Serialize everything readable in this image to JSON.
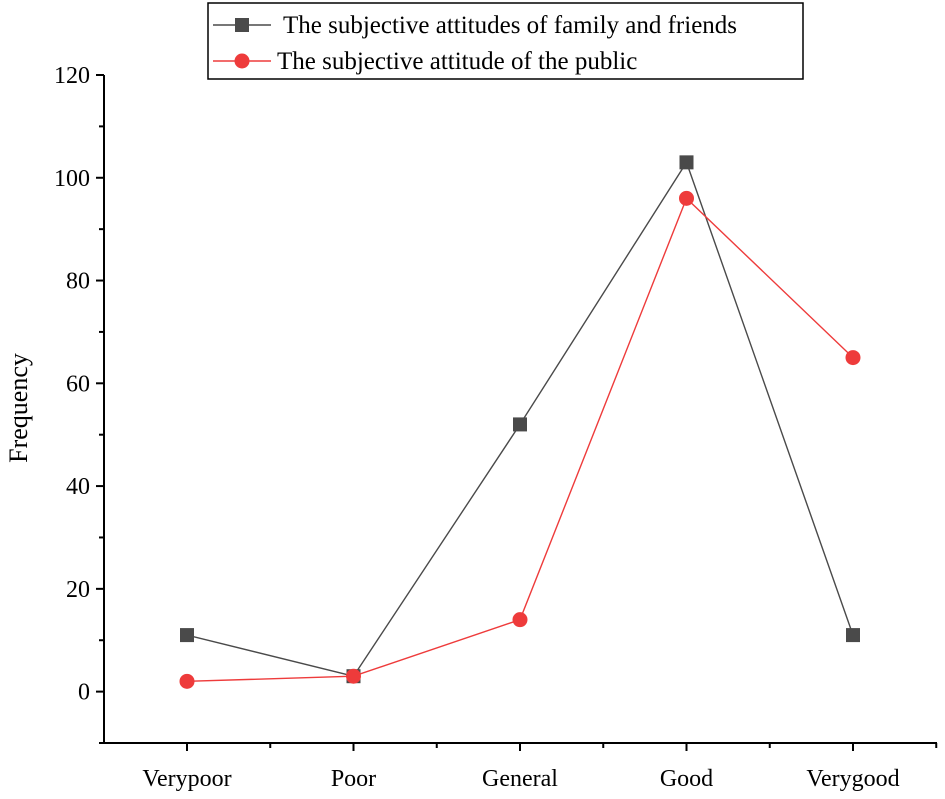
{
  "chart_data": {
    "type": "line",
    "title": "",
    "xlabel": "",
    "ylabel": "Frequency",
    "categories": [
      "Verypoor",
      "Poor",
      "General",
      "Good",
      "Verygood"
    ],
    "ylim": [
      -10,
      120
    ],
    "yticks": [
      0,
      20,
      40,
      60,
      80,
      100,
      120
    ],
    "grid": false,
    "legend_position": "top-right",
    "series": [
      {
        "name": "The subjective attitudes of family and friends",
        "values": [
          11,
          3,
          52,
          103,
          11
        ],
        "color": "#4a4a4a",
        "marker": "square"
      },
      {
        "name": "The subjective attitude of the public",
        "values": [
          2,
          3,
          14,
          96,
          65
        ],
        "color": "#ee3b3b",
        "marker": "circle"
      }
    ]
  }
}
